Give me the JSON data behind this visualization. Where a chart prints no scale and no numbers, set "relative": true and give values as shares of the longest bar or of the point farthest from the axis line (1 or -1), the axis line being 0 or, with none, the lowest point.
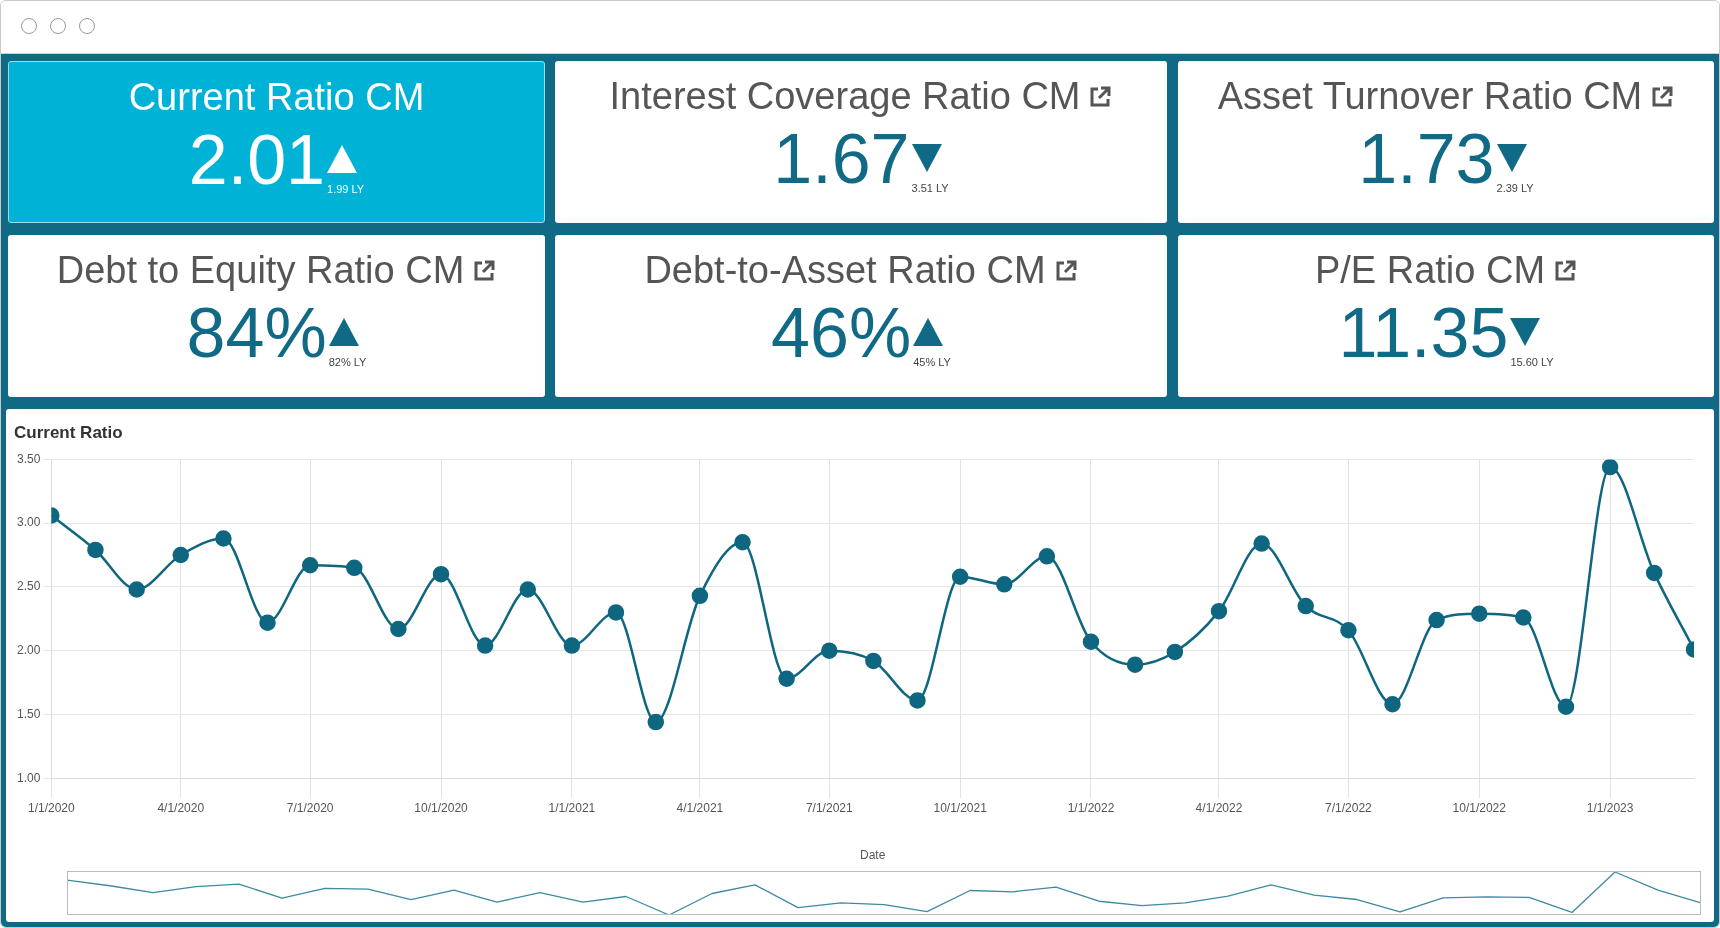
{
  "chart_data": [
    {
      "type": "other",
      "title": "Current Ratio CM",
      "annotations": [
        "2.01",
        "1.99 LY"
      ]
    },
    {
      "type": "other",
      "title": "Interest Coverage Ratio CM",
      "annotations": [
        "1.67",
        "3.51 LY"
      ]
    },
    {
      "type": "other",
      "title": "Asset Turnover Ratio CM",
      "annotations": [
        "1.73",
        "2.39 LY"
      ]
    },
    {
      "type": "other",
      "title": "Debt to Equity Ratio CM",
      "annotations": [
        "84%",
        "82% LY"
      ]
    },
    {
      "type": "other",
      "title": "Debt-to-Asset Ratio CM",
      "annotations": [
        "46%",
        "45% LY"
      ]
    },
    {
      "type": "other",
      "title": "P/E Ratio CM",
      "annotations": [
        "11.35",
        "15.60 LY"
      ]
    },
    {
      "type": "line",
      "title": "Current Ratio",
      "xlabel": "Date",
      "x": [
        "2020-01",
        "2020-02",
        "2020-03",
        "2020-04",
        "2020-05",
        "2020-06",
        "2020-07",
        "2020-08",
        "2020-09",
        "2020-10",
        "2020-11",
        "2020-12",
        "2021-01",
        "2021-02",
        "2021-03",
        "2021-04",
        "2021-05",
        "2021-06",
        "2021-07",
        "2021-08",
        "2021-09",
        "2021-10",
        "2021-11",
        "2021-12",
        "2022-01",
        "2022-02",
        "2022-03",
        "2022-04",
        "2022-05",
        "2022-06",
        "2022-07",
        "2022-08",
        "2022-09",
        "2022-10",
        "2022-11",
        "2022-12",
        "2023-01",
        "2023-02",
        "2023-03"
      ],
      "series": [
        {
          "color": "#0f6680",
          "values": [
            3.06,
            2.79,
            2.48,
            2.75,
            2.88,
            2.22,
            2.67,
            2.65,
            2.17,
            2.6,
            2.04,
            2.48,
            2.04,
            2.3,
            1.44,
            2.43,
            2.85,
            1.78,
            2.0,
            1.92,
            1.61,
            2.58,
            2.52,
            2.74,
            2.07,
            1.89,
            1.99,
            2.31,
            2.84,
            2.35,
            2.16,
            1.58,
            2.24,
            2.29,
            2.26,
            1.56,
            3.44,
            2.61,
            2.01
          ]
        }
      ],
      "xlim": [
        "2020-01-01",
        "2023-03-01"
      ],
      "xticks": [
        {
          "value": "2020-01-01",
          "label": "1/1/2020"
        },
        {
          "value": "2020-04-01",
          "label": "4/1/2020"
        },
        {
          "value": "2020-07-01",
          "label": "7/1/2020"
        },
        {
          "value": "2020-10-01",
          "label": "10/1/2020"
        },
        {
          "value": "2021-01-01",
          "label": "1/1/2021"
        },
        {
          "value": "2021-04-01",
          "label": "4/1/2021"
        },
        {
          "value": "2021-07-01",
          "label": "7/1/2021"
        },
        {
          "value": "2021-10-01",
          "label": "10/1/2021"
        },
        {
          "value": "2022-01-01",
          "label": "1/1/2022"
        },
        {
          "value": "2022-04-01",
          "label": "4/1/2022"
        },
        {
          "value": "2022-07-01",
          "label": "7/1/2022"
        },
        {
          "value": "2022-10-01",
          "label": "10/1/2022"
        },
        {
          "value": "2023-01-01",
          "label": "1/1/2023"
        }
      ],
      "ylim": [
        1.0,
        3.5
      ],
      "yticks": [
        {
          "value": 1.0,
          "label": "1.00"
        },
        {
          "value": 1.5,
          "label": "1.50"
        },
        {
          "value": 2.0,
          "label": "2.00"
        },
        {
          "value": 2.5,
          "label": "2.50"
        },
        {
          "value": 3.0,
          "label": "3.00"
        },
        {
          "value": 3.5,
          "label": "3.50"
        }
      ],
      "grid": true,
      "legend": false,
      "marker": "circle",
      "line_style": "solid"
    },
    {
      "type": "line",
      "relative": true,
      "categories": [
        null,
        null,
        null,
        null,
        null,
        null,
        null,
        null,
        null,
        null,
        null,
        null,
        null,
        null,
        null,
        null,
        null,
        null,
        null,
        null,
        null,
        null,
        null,
        null,
        null,
        null,
        null,
        null,
        null,
        null,
        null,
        null,
        null,
        null,
        null,
        null,
        null,
        null,
        null
      ],
      "series": [
        {
          "color": "#3d8aa2",
          "values": [
            0.81,
            0.68,
            0.52,
            0.66,
            0.72,
            0.39,
            0.62,
            0.6,
            0.36,
            0.58,
            0.3,
            0.52,
            0.3,
            0.43,
            0,
            0.5,
            0.7,
            0.17,
            0.28,
            0.24,
            0.08,
            0.57,
            0.54,
            0.65,
            0.32,
            0.22,
            0.28,
            0.44,
            0.7,
            0.46,
            0.36,
            0.07,
            0.4,
            0.42,
            0.41,
            0.06,
            1,
            0.58,
            0.28
          ]
        }
      ]
    }
  ]
}
